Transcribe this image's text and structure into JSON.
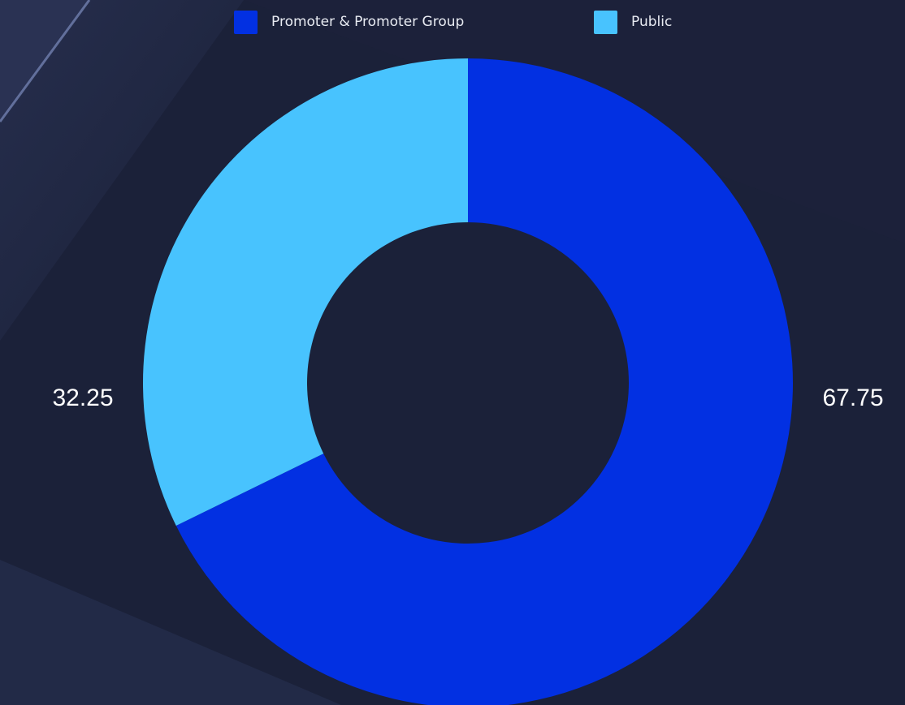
{
  "chart_data": {
    "type": "donut",
    "categories": [
      "Promoter & Promoter Group",
      "Public"
    ],
    "values": [
      67.75,
      32.25
    ],
    "colors": [
      "#0230e2",
      "#48c3fe"
    ],
    "legend": "top"
  }
}
